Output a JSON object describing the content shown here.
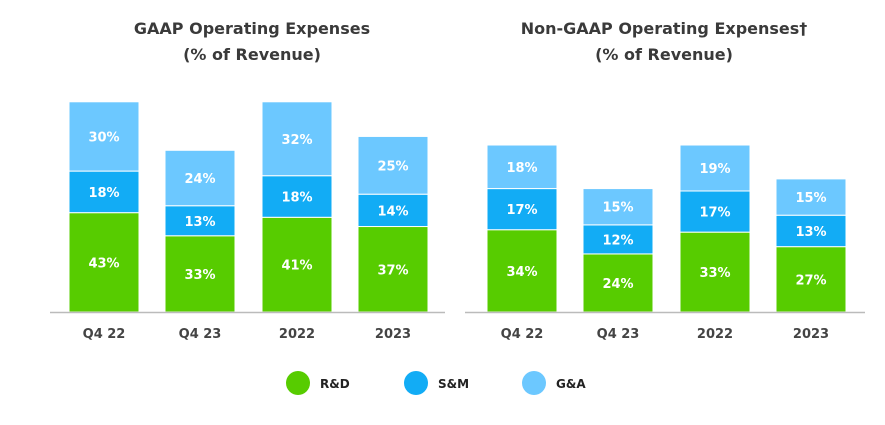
{
  "chart_data": [
    {
      "type": "bar",
      "stacked": true,
      "title": [
        "GAAP Operating Expenses",
        "(% of Revenue)"
      ],
      "categories": [
        "Q4 22",
        "Q4 23",
        "2022",
        "2023"
      ],
      "series": [
        {
          "name": "R&D",
          "values": [
            43,
            33,
            41,
            37
          ],
          "color": "#57cc00"
        },
        {
          "name": "S&M",
          "values": [
            18,
            13,
            18,
            14
          ],
          "color": "#12acf5"
        },
        {
          "name": "G&A",
          "values": [
            30,
            24,
            32,
            25
          ],
          "color": "#6cc8ff"
        }
      ],
      "value_format": "percent"
    },
    {
      "type": "bar",
      "stacked": true,
      "title": [
        "Non-GAAP Operating Expenses†",
        "(% of Revenue)"
      ],
      "categories": [
        "Q4 22",
        "Q4 23",
        "2022",
        "2023"
      ],
      "series": [
        {
          "name": "R&D",
          "values": [
            34,
            24,
            33,
            27
          ],
          "color": "#57cc00"
        },
        {
          "name": "S&M",
          "values": [
            17,
            12,
            17,
            13
          ],
          "color": "#12acf5"
        },
        {
          "name": "G&A",
          "values": [
            18,
            15,
            19,
            15
          ],
          "color": "#6cc8ff"
        }
      ],
      "value_format": "percent"
    }
  ],
  "legend": {
    "position": "bottom",
    "items": [
      "R&D",
      "S&M",
      "G&A"
    ]
  }
}
